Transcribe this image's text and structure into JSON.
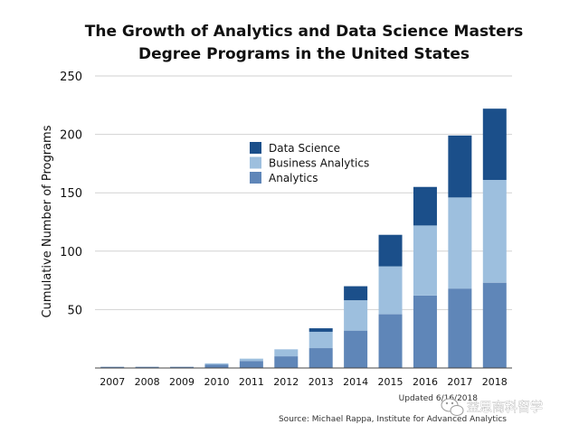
{
  "chart_data": {
    "type": "bar",
    "stacked": true,
    "title_lines": [
      "The Growth of Analytics and Data Science Masters",
      "Degree Programs in the United States"
    ],
    "xlabel": "",
    "ylabel": "Cumulative Number of Programs",
    "ylim": [
      0,
      250
    ],
    "yticks": [
      50,
      100,
      150,
      200,
      250
    ],
    "grid": true,
    "legend_position": "center-left",
    "categories": [
      "2007",
      "2008",
      "2009",
      "2010",
      "2011",
      "2012",
      "2013",
      "2014",
      "2015",
      "2016",
      "2017",
      "2018"
    ],
    "series": [
      {
        "name": "Analytics",
        "color": "#5f86b8",
        "values": [
          1,
          1,
          1,
          3,
          6,
          10,
          17,
          32,
          46,
          62,
          68,
          73
        ]
      },
      {
        "name": "Business Analytics",
        "color": "#9dbfde",
        "values": [
          0,
          0,
          0,
          1,
          2,
          6,
          14,
          26,
          41,
          60,
          78,
          88
        ]
      },
      {
        "name": "Data Science",
        "color": "#1b4f8a",
        "values": [
          0,
          0,
          0,
          0,
          0,
          0,
          3,
          12,
          27,
          33,
          53,
          61
        ]
      }
    ],
    "legend_order": [
      "Data Science",
      "Business Analytics",
      "Analytics"
    ]
  },
  "footer": {
    "updated": "Updated 6/16/2018",
    "source": "Source: Michael Rappa, Institute for Advanced Analytics"
  },
  "watermark": {
    "text": "益思商科留学",
    "icon": "wechat-icon"
  }
}
